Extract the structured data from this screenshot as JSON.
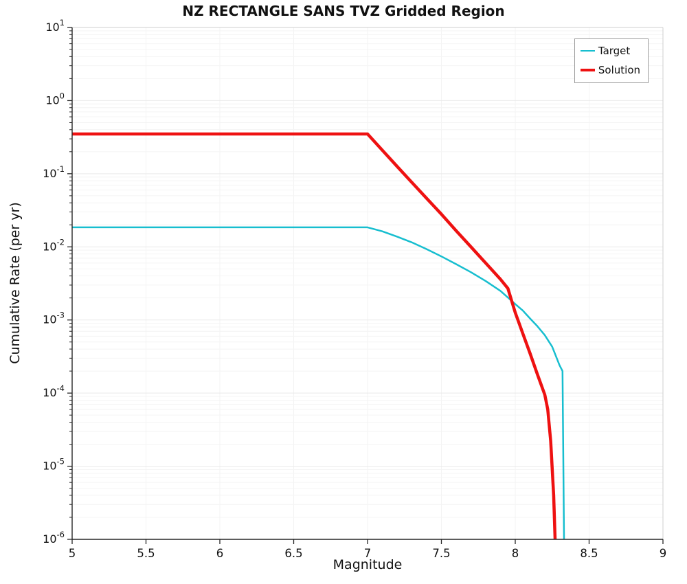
{
  "chart_data": {
    "type": "line",
    "title": "NZ RECTANGLE SANS TVZ Gridded Region",
    "xlabel": "Magnitude",
    "ylabel": "Cumulative Rate (per yr)",
    "xlim": [
      5,
      9
    ],
    "ylim": [
      1e-06,
      10
    ],
    "y_scale": "log",
    "grid": true,
    "legend_position": "top-right",
    "x_ticks": [
      {
        "value": 5,
        "label": "5"
      },
      {
        "value": 5.5,
        "label": "5.5"
      },
      {
        "value": 6,
        "label": "6"
      },
      {
        "value": 6.5,
        "label": "6.5"
      },
      {
        "value": 7,
        "label": "7"
      },
      {
        "value": 7.5,
        "label": "7.5"
      },
      {
        "value": 8,
        "label": "8"
      },
      {
        "value": 8.5,
        "label": "8.5"
      },
      {
        "value": 9,
        "label": "9"
      }
    ],
    "y_ticks": [
      {
        "value": 10.0,
        "exp": "1"
      },
      {
        "value": 1.0,
        "exp": "0"
      },
      {
        "value": 0.1,
        "exp": "-1"
      },
      {
        "value": 0.01,
        "exp": "-2"
      },
      {
        "value": 0.001,
        "exp": "-3"
      },
      {
        "value": 0.0001,
        "exp": "-4"
      },
      {
        "value": 1e-05,
        "exp": "-5"
      },
      {
        "value": 1e-06,
        "exp": "-6"
      }
    ],
    "series": [
      {
        "name": "Target",
        "color": "#17becf",
        "width": 2.5,
        "points": [
          [
            5.0,
            0.0185
          ],
          [
            7.0,
            0.0185
          ],
          [
            7.1,
            0.0163
          ],
          [
            7.2,
            0.0138
          ],
          [
            7.3,
            0.0115
          ],
          [
            7.4,
            0.0093
          ],
          [
            7.5,
            0.0074
          ],
          [
            7.6,
            0.0058
          ],
          [
            7.7,
            0.0045
          ],
          [
            7.8,
            0.0034
          ],
          [
            7.9,
            0.0025
          ],
          [
            8.0,
            0.00165
          ],
          [
            8.05,
            0.00135
          ],
          [
            8.1,
            0.00105
          ],
          [
            8.15,
            0.00082
          ],
          [
            8.2,
            0.00062
          ],
          [
            8.25,
            0.00043
          ],
          [
            8.3,
            0.00024
          ],
          [
            8.32,
            0.0002
          ],
          [
            8.33,
            1e-06
          ]
        ]
      },
      {
        "name": "Solution",
        "color": "#ee1111",
        "width": 4.5,
        "points": [
          [
            5.0,
            0.35
          ],
          [
            7.0,
            0.35
          ],
          [
            7.1,
            0.21
          ],
          [
            7.2,
            0.126
          ],
          [
            7.3,
            0.076
          ],
          [
            7.4,
            0.046
          ],
          [
            7.5,
            0.028
          ],
          [
            7.6,
            0.0166
          ],
          [
            7.7,
            0.01
          ],
          [
            7.8,
            0.006
          ],
          [
            7.9,
            0.0036
          ],
          [
            7.95,
            0.0027
          ],
          [
            8.0,
            0.00126
          ],
          [
            8.05,
            0.00066
          ],
          [
            8.1,
            0.00035
          ],
          [
            8.15,
            0.00018
          ],
          [
            8.2,
            9.5e-05
          ],
          [
            8.22,
            6e-05
          ],
          [
            8.24,
            2.2e-05
          ],
          [
            8.26,
            4e-06
          ],
          [
            8.27,
            1e-06
          ]
        ]
      }
    ]
  }
}
